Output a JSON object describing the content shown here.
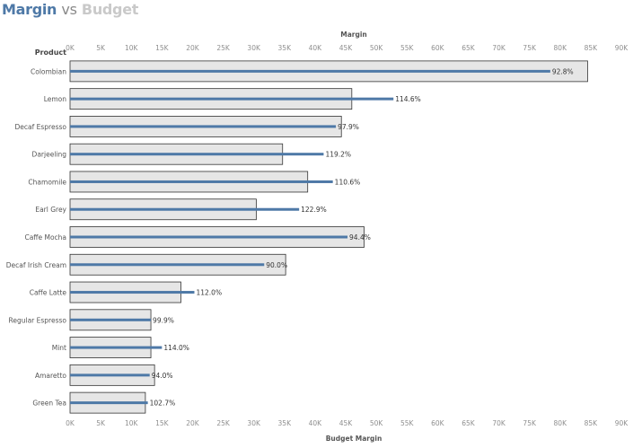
{
  "title": {
    "part1": "Margin",
    "part2": "vs",
    "part3": "Budget"
  },
  "colors": {
    "actual": "#4e79a7",
    "budget_fill": "#e6e6e6",
    "budget_stroke": "#333333",
    "tick": "#8f8f8f"
  },
  "chart_data": {
    "type": "bar",
    "row_header": "Product",
    "top_axis_title": "Margin",
    "bottom_axis_title": "Budget Margin",
    "xlim": [
      0,
      90000
    ],
    "tick_labels": [
      "0K",
      "5K",
      "10K",
      "15K",
      "20K",
      "25K",
      "30K",
      "35K",
      "40K",
      "45K",
      "50K",
      "55K",
      "60K",
      "65K",
      "70K",
      "75K",
      "80K",
      "85K",
      "90K"
    ],
    "categories": [
      "Colombian",
      "Lemon",
      "Decaf Espresso",
      "Darjeeling",
      "Chamomile",
      "Earl Grey",
      "Caffe Mocha",
      "Decaf Irish Cream",
      "Caffe Latte",
      "Regular Espresso",
      "Mint",
      "Amaretto",
      "Green Tea"
    ],
    "series": [
      {
        "name": "Budget Margin",
        "values": [
          84500,
          46000,
          44300,
          34700,
          38800,
          30400,
          48000,
          35200,
          18100,
          13200,
          13200,
          13800,
          12300
        ]
      },
      {
        "name": "Margin",
        "values": [
          78400,
          52800,
          43400,
          41400,
          42900,
          37400,
          45300,
          31700,
          20300,
          13200,
          15000,
          13000,
          12700
        ]
      }
    ],
    "data_labels": [
      "92.8%",
      "114.6%",
      "97.9%",
      "119.2%",
      "110.6%",
      "122.9%",
      "94.4%",
      "90.0%",
      "112.0%",
      "99.9%",
      "114.0%",
      "94.0%",
      "102.7%"
    ],
    "grid": false
  }
}
